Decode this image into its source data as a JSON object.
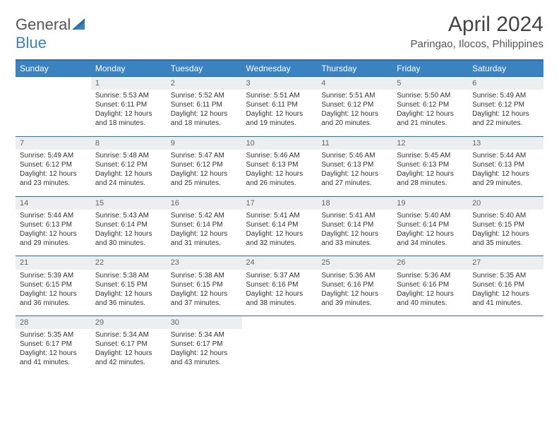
{
  "brand": {
    "name_a": "General",
    "name_b": "Blue"
  },
  "title": "April 2024",
  "location": "Paringao, Ilocos, Philippines",
  "colors": {
    "header_bg": "#3b83c0",
    "header_text": "#ffffff",
    "border": "#2b6fa8",
    "daynum_bg": "#eceef0",
    "body_text": "#333333",
    "logo_gray": "#555555",
    "logo_blue": "#3b7fc4"
  },
  "day_headers": [
    "Sunday",
    "Monday",
    "Tuesday",
    "Wednesday",
    "Thursday",
    "Friday",
    "Saturday"
  ],
  "weeks": [
    {
      "nums": [
        "",
        "1",
        "2",
        "3",
        "4",
        "5",
        "6"
      ],
      "cells": [
        null,
        {
          "sunrise": "5:53 AM",
          "sunset": "6:11 PM",
          "daylight": "12 hours and 18 minutes."
        },
        {
          "sunrise": "5:52 AM",
          "sunset": "6:11 PM",
          "daylight": "12 hours and 18 minutes."
        },
        {
          "sunrise": "5:51 AM",
          "sunset": "6:11 PM",
          "daylight": "12 hours and 19 minutes."
        },
        {
          "sunrise": "5:51 AM",
          "sunset": "6:12 PM",
          "daylight": "12 hours and 20 minutes."
        },
        {
          "sunrise": "5:50 AM",
          "sunset": "6:12 PM",
          "daylight": "12 hours and 21 minutes."
        },
        {
          "sunrise": "5:49 AM",
          "sunset": "6:12 PM",
          "daylight": "12 hours and 22 minutes."
        }
      ]
    },
    {
      "nums": [
        "7",
        "8",
        "9",
        "10",
        "11",
        "12",
        "13"
      ],
      "cells": [
        {
          "sunrise": "5:49 AM",
          "sunset": "6:12 PM",
          "daylight": "12 hours and 23 minutes."
        },
        {
          "sunrise": "5:48 AM",
          "sunset": "6:12 PM",
          "daylight": "12 hours and 24 minutes."
        },
        {
          "sunrise": "5:47 AM",
          "sunset": "6:12 PM",
          "daylight": "12 hours and 25 minutes."
        },
        {
          "sunrise": "5:46 AM",
          "sunset": "6:13 PM",
          "daylight": "12 hours and 26 minutes."
        },
        {
          "sunrise": "5:46 AM",
          "sunset": "6:13 PM",
          "daylight": "12 hours and 27 minutes."
        },
        {
          "sunrise": "5:45 AM",
          "sunset": "6:13 PM",
          "daylight": "12 hours and 28 minutes."
        },
        {
          "sunrise": "5:44 AM",
          "sunset": "6:13 PM",
          "daylight": "12 hours and 29 minutes."
        }
      ]
    },
    {
      "nums": [
        "14",
        "15",
        "16",
        "17",
        "18",
        "19",
        "20"
      ],
      "cells": [
        {
          "sunrise": "5:44 AM",
          "sunset": "6:13 PM",
          "daylight": "12 hours and 29 minutes."
        },
        {
          "sunrise": "5:43 AM",
          "sunset": "6:14 PM",
          "daylight": "12 hours and 30 minutes."
        },
        {
          "sunrise": "5:42 AM",
          "sunset": "6:14 PM",
          "daylight": "12 hours and 31 minutes."
        },
        {
          "sunrise": "5:41 AM",
          "sunset": "6:14 PM",
          "daylight": "12 hours and 32 minutes."
        },
        {
          "sunrise": "5:41 AM",
          "sunset": "6:14 PM",
          "daylight": "12 hours and 33 minutes."
        },
        {
          "sunrise": "5:40 AM",
          "sunset": "6:14 PM",
          "daylight": "12 hours and 34 minutes."
        },
        {
          "sunrise": "5:40 AM",
          "sunset": "6:15 PM",
          "daylight": "12 hours and 35 minutes."
        }
      ]
    },
    {
      "nums": [
        "21",
        "22",
        "23",
        "24",
        "25",
        "26",
        "27"
      ],
      "cells": [
        {
          "sunrise": "5:39 AM",
          "sunset": "6:15 PM",
          "daylight": "12 hours and 36 minutes."
        },
        {
          "sunrise": "5:38 AM",
          "sunset": "6:15 PM",
          "daylight": "12 hours and 36 minutes."
        },
        {
          "sunrise": "5:38 AM",
          "sunset": "6:15 PM",
          "daylight": "12 hours and 37 minutes."
        },
        {
          "sunrise": "5:37 AM",
          "sunset": "6:16 PM",
          "daylight": "12 hours and 38 minutes."
        },
        {
          "sunrise": "5:36 AM",
          "sunset": "6:16 PM",
          "daylight": "12 hours and 39 minutes."
        },
        {
          "sunrise": "5:36 AM",
          "sunset": "6:16 PM",
          "daylight": "12 hours and 40 minutes."
        },
        {
          "sunrise": "5:35 AM",
          "sunset": "6:16 PM",
          "daylight": "12 hours and 41 minutes."
        }
      ]
    },
    {
      "nums": [
        "28",
        "29",
        "30",
        "",
        "",
        "",
        ""
      ],
      "cells": [
        {
          "sunrise": "5:35 AM",
          "sunset": "6:17 PM",
          "daylight": "12 hours and 41 minutes."
        },
        {
          "sunrise": "5:34 AM",
          "sunset": "6:17 PM",
          "daylight": "12 hours and 42 minutes."
        },
        {
          "sunrise": "5:34 AM",
          "sunset": "6:17 PM",
          "daylight": "12 hours and 43 minutes."
        },
        null,
        null,
        null,
        null
      ]
    }
  ],
  "labels": {
    "sunrise_prefix": "Sunrise: ",
    "sunset_prefix": "Sunset: ",
    "daylight_prefix": "Daylight: "
  }
}
